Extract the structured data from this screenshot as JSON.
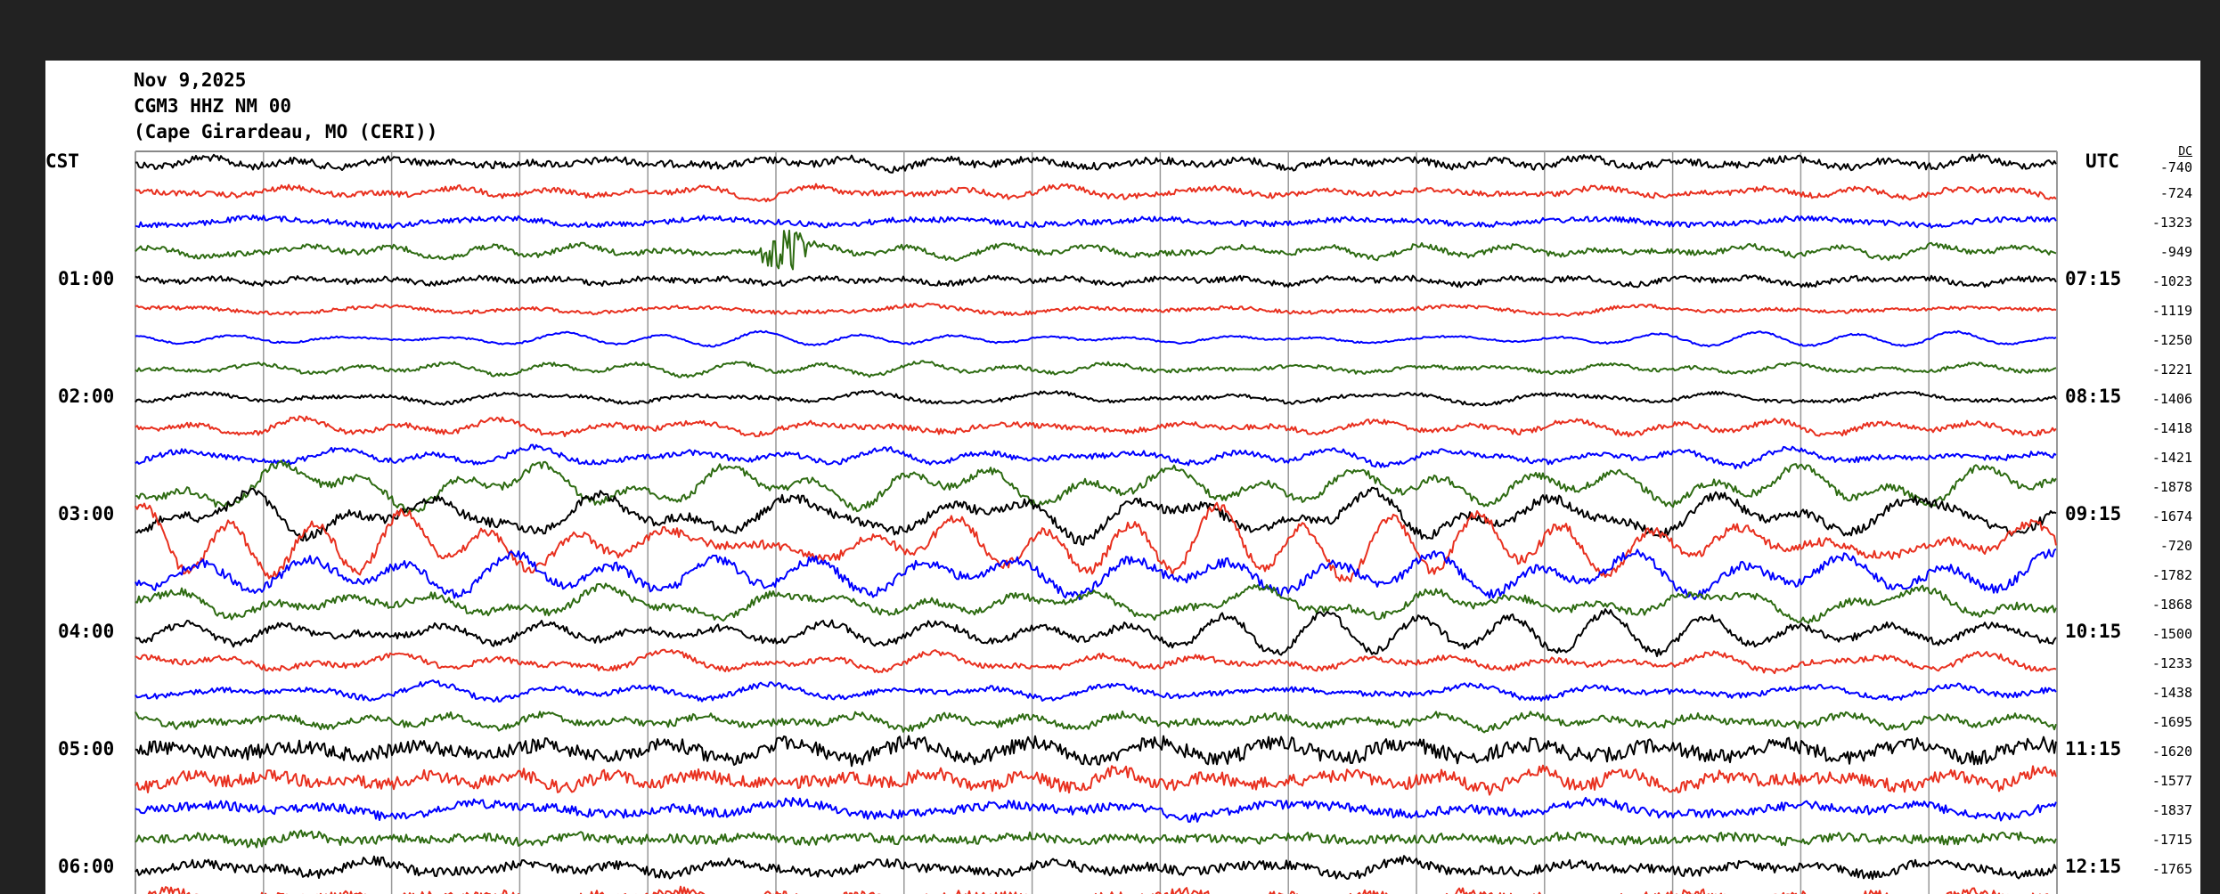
{
  "header": {
    "date": "Nov 9,2025",
    "station": "CGM3 HHZ NM 00",
    "location": "(Cape Girardeau, MO (CERI))"
  },
  "chart_data": {
    "type": "line",
    "left_axis_label": "CST",
    "right_axis_label": "UTC",
    "dc_label": "DC",
    "minutes_per_line": 15,
    "lines_per_hour": 4,
    "grid": "vertical lines every minute",
    "left_hour_labels": [
      "01:00",
      "02:00",
      "03:00",
      "04:00",
      "05:00",
      "06:00"
    ],
    "right_hour_labels": [
      "07:15",
      "08:15",
      "09:15",
      "10:15",
      "11:15",
      "12:15"
    ],
    "trace_colors": [
      "#000000",
      "#e8301f",
      "#0000ff",
      "#2e6b12"
    ],
    "dc_offsets": [
      "-740",
      "-724",
      "-1323",
      "-949",
      "-1023",
      "-1119",
      "-1250",
      "-1221",
      "-1406",
      "-1418",
      "-1421",
      "-1878",
      "-1674",
      "-720",
      "-1782",
      "-1868",
      "-1500",
      "-1233",
      "-1438",
      "-1695",
      "-1620",
      "-1577",
      "-1837",
      "-1715",
      "-1765"
    ]
  }
}
